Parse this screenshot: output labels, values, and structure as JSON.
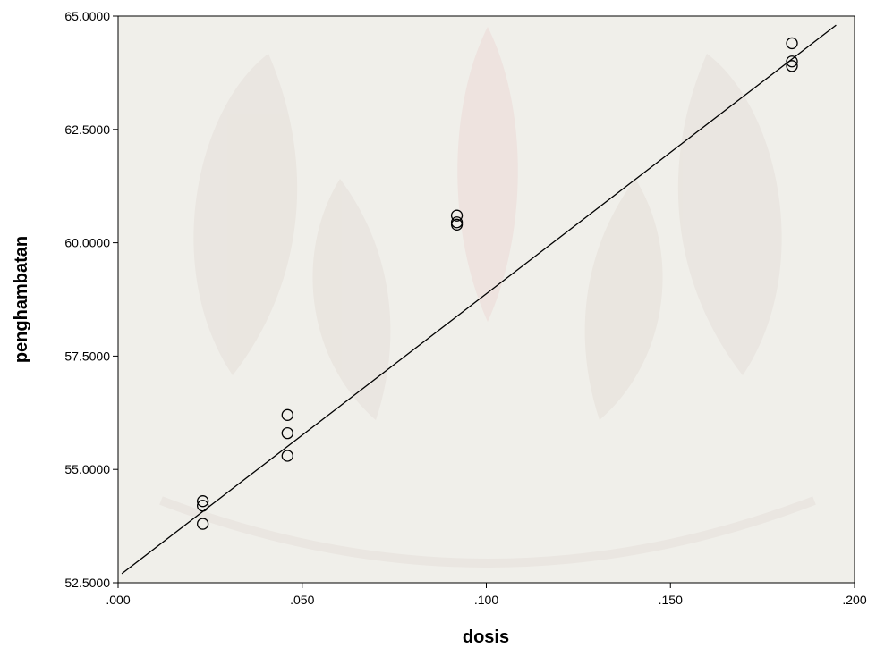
{
  "chart_data": {
    "type": "scatter",
    "title": "",
    "xlabel": "dosis",
    "ylabel": "penghambatan",
    "xlim": [
      0.0,
      0.2
    ],
    "ylim": [
      52.5,
      65.0
    ],
    "x_tick_labels": [
      ".000",
      ".050",
      ".100",
      ".150",
      ".200"
    ],
    "x_tick_values": [
      0.0,
      0.05,
      0.1,
      0.15,
      0.2
    ],
    "y_tick_labels": [
      "52.5000",
      "55.0000",
      "57.5000",
      "60.0000",
      "62.5000",
      "65.0000"
    ],
    "y_tick_values": [
      52.5,
      55.0,
      57.5,
      60.0,
      62.5,
      65.0
    ],
    "grid": false,
    "marker": "open-circle",
    "points": [
      {
        "x": 0.023,
        "y": 54.3
      },
      {
        "x": 0.023,
        "y": 54.2
      },
      {
        "x": 0.023,
        "y": 53.8
      },
      {
        "x": 0.046,
        "y": 56.2
      },
      {
        "x": 0.046,
        "y": 55.8
      },
      {
        "x": 0.046,
        "y": 55.3
      },
      {
        "x": 0.092,
        "y": 60.6
      },
      {
        "x": 0.092,
        "y": 60.45
      },
      {
        "x": 0.092,
        "y": 60.4
      },
      {
        "x": 0.183,
        "y": 64.4
      },
      {
        "x": 0.183,
        "y": 64.0
      },
      {
        "x": 0.183,
        "y": 63.9
      }
    ],
    "fit_line": {
      "x": [
        0.001,
        0.195
      ],
      "y": [
        52.7,
        64.8
      ]
    },
    "colors": {
      "plot_background": "#f0efea",
      "marker": "#000000",
      "line": "#000000",
      "watermark": "#e6dfd8"
    }
  }
}
